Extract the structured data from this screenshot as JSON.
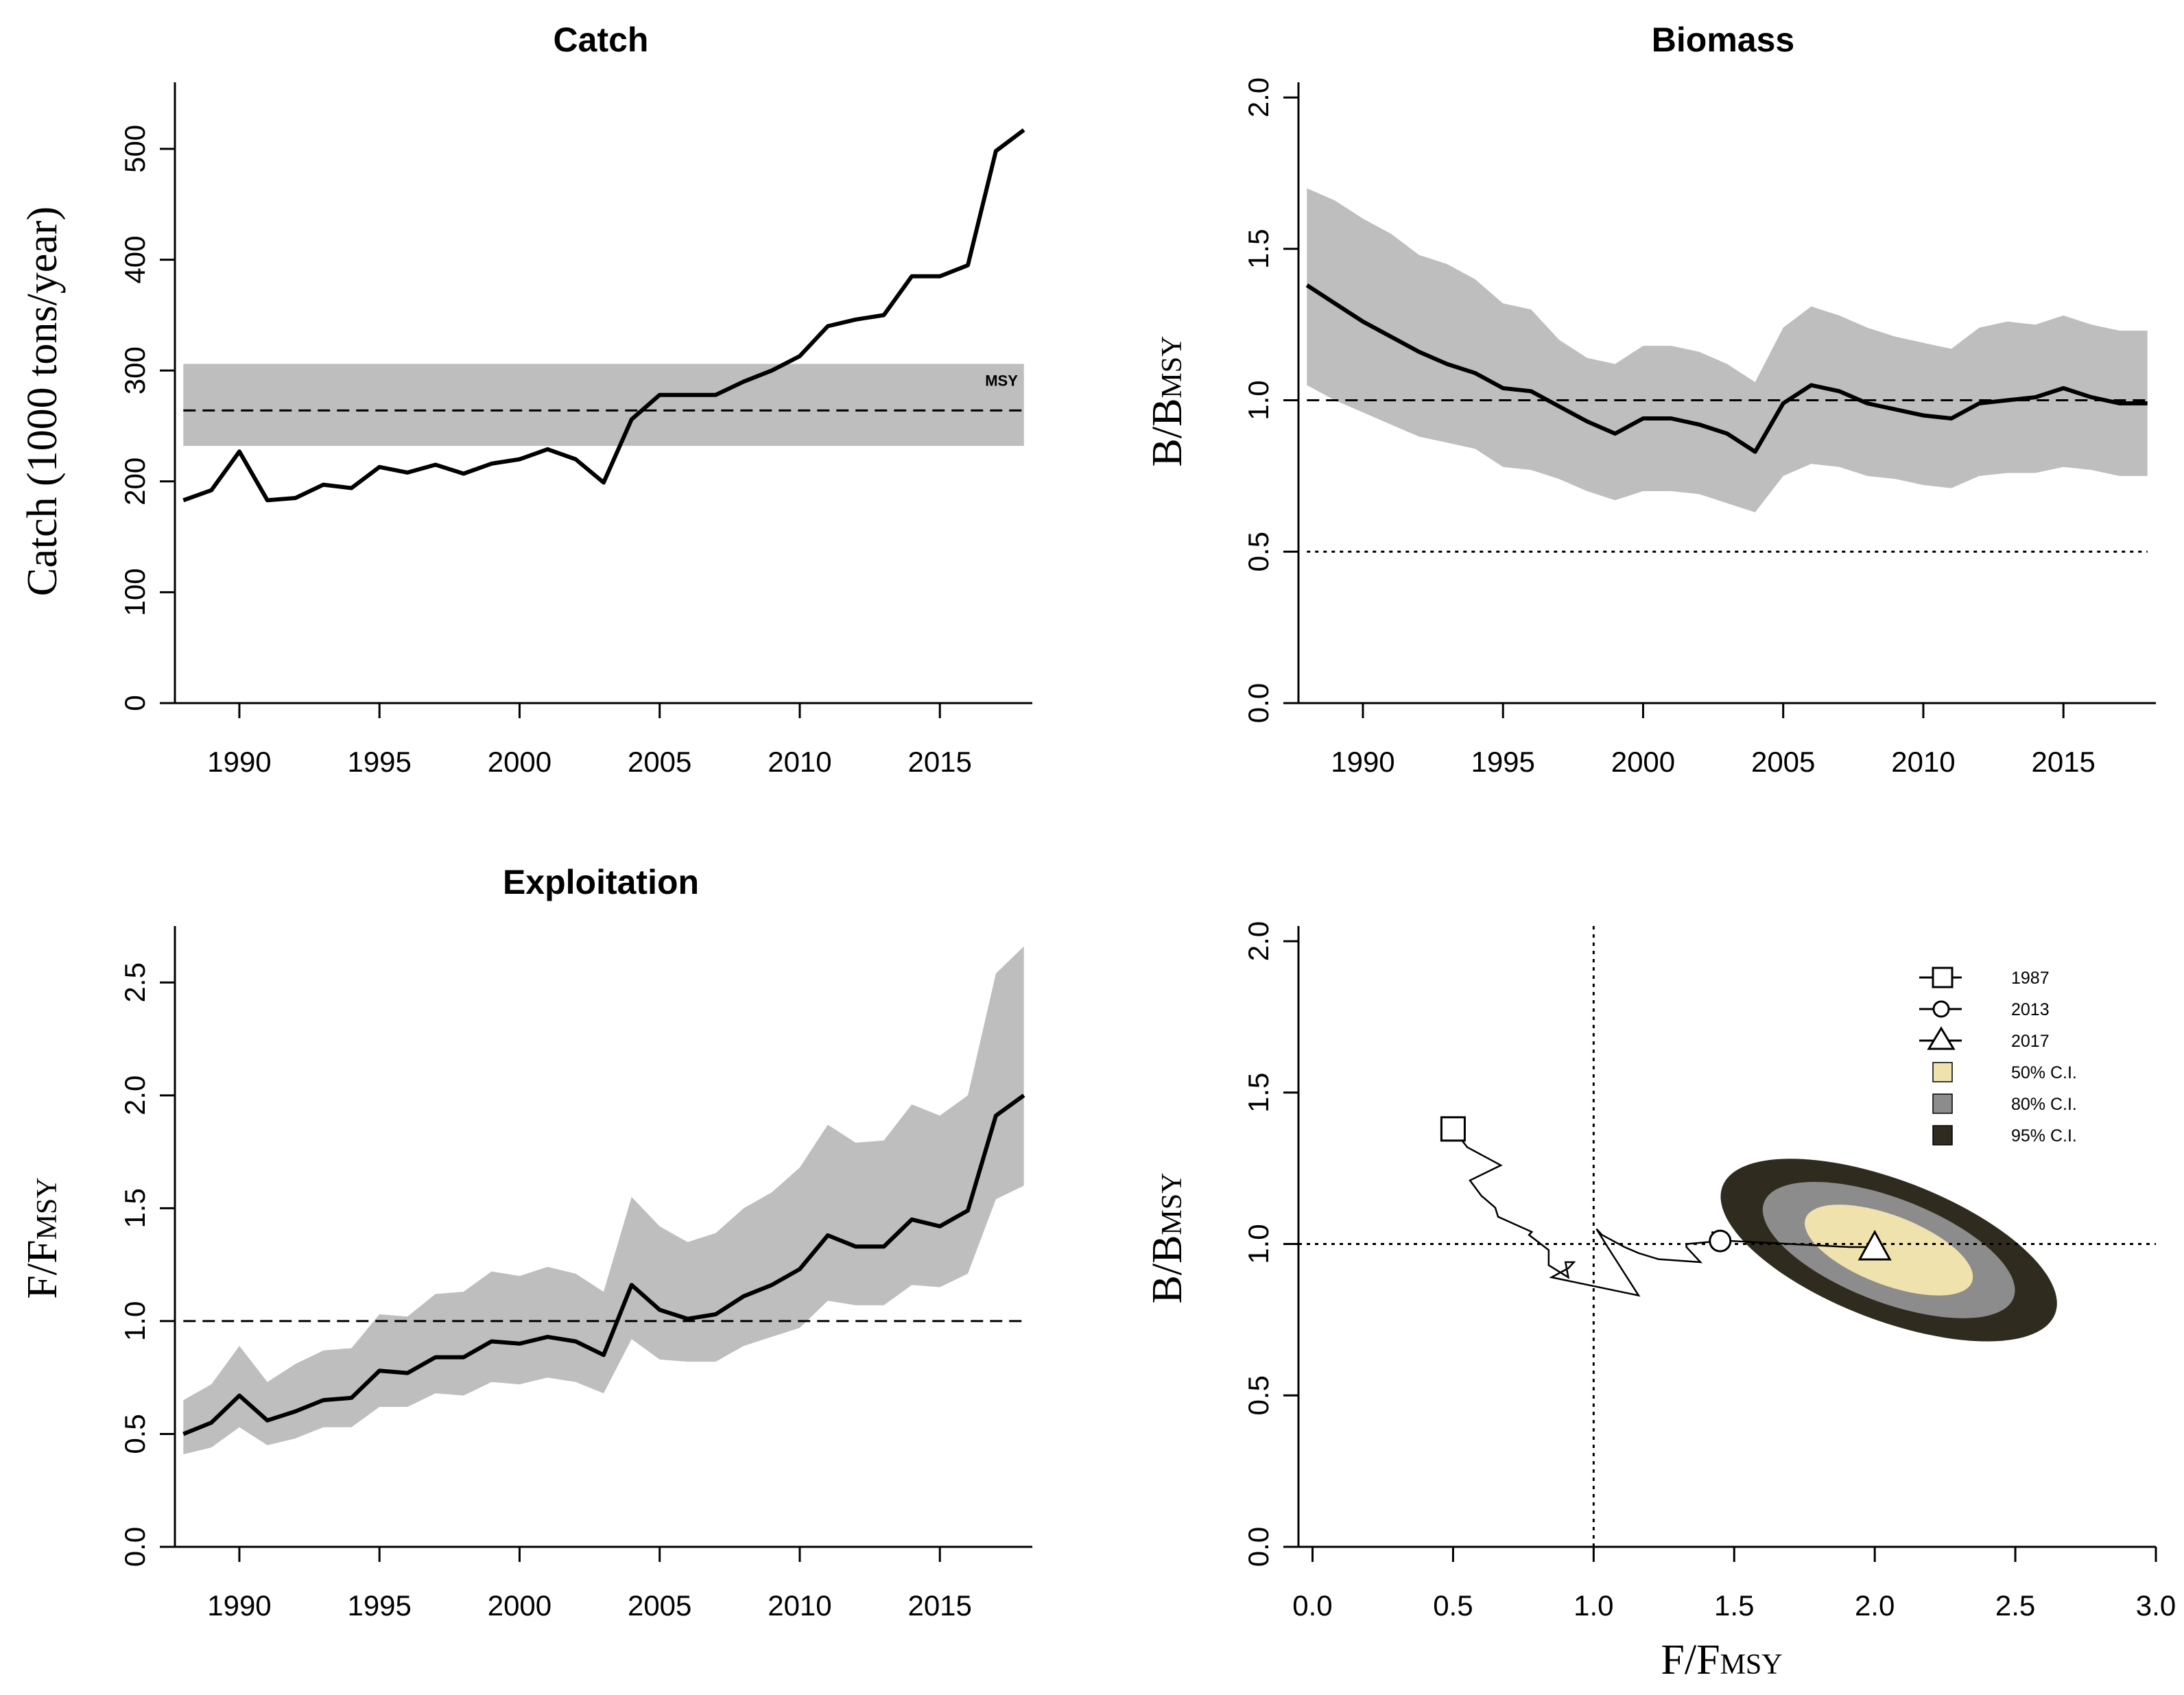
{
  "chart_data": [
    {
      "id": "catch",
      "type": "line",
      "title": "Catch",
      "ylabel": "Catch (1000 tons/year)",
      "xlabel": "",
      "xlim": [
        1987.7,
        2018.3
      ],
      "ylim": [
        0,
        560
      ],
      "xticks": [
        1990,
        1995,
        2000,
        2005,
        2010,
        2015
      ],
      "yticks": [
        0,
        100,
        200,
        300,
        400,
        500
      ],
      "grid": false,
      "x": [
        1988,
        1989,
        1990,
        1991,
        1992,
        1993,
        1994,
        1995,
        1996,
        1997,
        1998,
        1999,
        2000,
        2001,
        2002,
        2003,
        2004,
        2005,
        2006,
        2007,
        2008,
        2009,
        2010,
        2011,
        2012,
        2013,
        2014,
        2015,
        2016,
        2017,
        2018
      ],
      "series": [
        {
          "values": [
            183,
            192,
            227,
            183,
            185,
            197,
            194,
            213,
            208,
            215,
            207,
            216,
            220,
            229,
            220,
            199,
            256,
            278,
            278,
            278,
            290,
            300,
            313,
            340,
            346,
            350,
            385,
            385,
            395,
            498,
            517
          ]
        }
      ],
      "reference": {
        "label": "MSY",
        "value": 264,
        "band": [
          232,
          306
        ],
        "style": "dashed"
      },
      "colors": {
        "line": "#000000",
        "band": "#bebebe"
      }
    },
    {
      "id": "biomass",
      "type": "line",
      "title": "Biomass",
      "ylabel": {
        "main": "B/B",
        "sub": "MSY"
      },
      "xlabel": "",
      "xlim": [
        1987.7,
        2018.3
      ],
      "ylim": [
        0,
        2.05
      ],
      "xticks": [
        1990,
        1995,
        2000,
        2005,
        2010,
        2015
      ],
      "yticks": [
        "0.0",
        "0.5",
        "1.0",
        "1.5",
        "2.0"
      ],
      "grid": false,
      "x": [
        1988,
        1989,
        1990,
        1991,
        1992,
        1993,
        1994,
        1995,
        1996,
        1997,
        1998,
        1999,
        2000,
        2001,
        2002,
        2003,
        2004,
        2005,
        2006,
        2007,
        2008,
        2009,
        2010,
        2011,
        2012,
        2013,
        2014,
        2015,
        2016,
        2017,
        2018
      ],
      "series": [
        {
          "values": [
            1.38,
            1.32,
            1.26,
            1.21,
            1.16,
            1.12,
            1.09,
            1.04,
            1.03,
            0.98,
            0.93,
            0.89,
            0.94,
            0.94,
            0.92,
            0.89,
            0.83,
            0.99,
            1.05,
            1.03,
            0.99,
            0.97,
            0.95,
            0.94,
            0.99,
            1.0,
            1.01,
            1.04,
            1.01,
            0.99,
            0.99
          ]
        }
      ],
      "ci_upper": [
        1.7,
        1.66,
        1.6,
        1.55,
        1.48,
        1.45,
        1.4,
        1.32,
        1.3,
        1.2,
        1.14,
        1.12,
        1.18,
        1.18,
        1.16,
        1.12,
        1.06,
        1.24,
        1.31,
        1.28,
        1.24,
        1.21,
        1.19,
        1.17,
        1.24,
        1.26,
        1.25,
        1.28,
        1.25,
        1.23,
        1.23
      ],
      "ci_lower": [
        1.05,
        1.0,
        0.96,
        0.92,
        0.88,
        0.86,
        0.84,
        0.78,
        0.77,
        0.74,
        0.7,
        0.67,
        0.7,
        0.7,
        0.69,
        0.66,
        0.63,
        0.75,
        0.79,
        0.78,
        0.75,
        0.74,
        0.72,
        0.71,
        0.75,
        0.76,
        0.76,
        0.78,
        0.77,
        0.75,
        0.75
      ],
      "reference_lines": [
        {
          "value": 1.0,
          "style": "dashed"
        },
        {
          "value": 0.5,
          "style": "dotted"
        }
      ],
      "colors": {
        "line": "#000000",
        "band": "#bebebe"
      }
    },
    {
      "id": "exploitation",
      "type": "line",
      "title": "Exploitation",
      "ylabel": {
        "main": "F/F",
        "sub": "MSY"
      },
      "xlabel": "",
      "xlim": [
        1987.7,
        2018.3
      ],
      "ylim": [
        0,
        2.75
      ],
      "xticks": [
        1990,
        1995,
        2000,
        2005,
        2010,
        2015
      ],
      "yticks": [
        "0.0",
        "0.5",
        "1.0",
        "1.5",
        "2.0",
        "2.5"
      ],
      "grid": false,
      "x": [
        1988,
        1989,
        1990,
        1991,
        1992,
        1993,
        1994,
        1995,
        1996,
        1997,
        1998,
        1999,
        2000,
        2001,
        2002,
        2003,
        2004,
        2005,
        2006,
        2007,
        2008,
        2009,
        2010,
        2011,
        2012,
        2013,
        2014,
        2015,
        2016,
        2017,
        2018
      ],
      "series": [
        {
          "values": [
            0.5,
            0.55,
            0.67,
            0.56,
            0.6,
            0.65,
            0.66,
            0.78,
            0.77,
            0.84,
            0.84,
            0.91,
            0.9,
            0.93,
            0.91,
            0.85,
            1.16,
            1.05,
            1.01,
            1.03,
            1.11,
            1.16,
            1.23,
            1.38,
            1.33,
            1.33,
            1.45,
            1.42,
            1.49,
            1.91,
            2.0
          ]
        }
      ],
      "ci_upper": [
        0.65,
        0.72,
        0.89,
        0.73,
        0.81,
        0.87,
        0.88,
        1.03,
        1.02,
        1.12,
        1.13,
        1.22,
        1.2,
        1.24,
        1.21,
        1.13,
        1.55,
        1.42,
        1.35,
        1.39,
        1.5,
        1.57,
        1.68,
        1.87,
        1.79,
        1.8,
        1.96,
        1.91,
        2.0,
        2.54,
        2.66
      ],
      "ci_lower": [
        0.41,
        0.44,
        0.53,
        0.45,
        0.48,
        0.53,
        0.53,
        0.62,
        0.62,
        0.68,
        0.67,
        0.73,
        0.72,
        0.75,
        0.73,
        0.68,
        0.92,
        0.83,
        0.82,
        0.82,
        0.89,
        0.93,
        0.97,
        1.09,
        1.07,
        1.07,
        1.16,
        1.15,
        1.21,
        1.54,
        1.6
      ],
      "reference_lines": [
        {
          "value": 1.0,
          "style": "dashed"
        }
      ],
      "colors": {
        "line": "#000000",
        "band": "#bebebe"
      }
    },
    {
      "id": "kobe",
      "type": "scatter",
      "title": "",
      "xlabel": {
        "main": "F/F",
        "sub": "MSY"
      },
      "ylabel": {
        "main": "B/B",
        "sub": "MSY"
      },
      "xlim": [
        -0.05,
        3.0
      ],
      "ylim": [
        0,
        2.05
      ],
      "xticks": [
        "0.0",
        "0.5",
        "1.0",
        "1.5",
        "2.0",
        "2.5",
        "3.0"
      ],
      "yticks": [
        "0.0",
        "0.5",
        "1.0",
        "1.5",
        "2.0"
      ],
      "grid": false,
      "trajectory": {
        "f": [
          0.5,
          0.55,
          0.67,
          0.56,
          0.6,
          0.65,
          0.66,
          0.78,
          0.77,
          0.84,
          0.84,
          0.91,
          0.9,
          0.93,
          0.91,
          0.85,
          1.16,
          1.05,
          1.01,
          1.03,
          1.11,
          1.16,
          1.23,
          1.38,
          1.33,
          1.33,
          1.45,
          1.42,
          1.49,
          1.91,
          2.0
        ],
        "b": [
          1.38,
          1.32,
          1.26,
          1.21,
          1.16,
          1.12,
          1.09,
          1.04,
          1.03,
          0.98,
          0.93,
          0.89,
          0.94,
          0.94,
          0.92,
          0.89,
          0.83,
          0.99,
          1.05,
          1.03,
          0.99,
          0.97,
          0.95,
          0.94,
          0.99,
          1.0,
          1.01,
          1.04,
          1.01,
          0.99,
          0.99
        ]
      },
      "markers": [
        {
          "label": "1987",
          "shape": "square",
          "f": 0.5,
          "b": 1.38
        },
        {
          "label": "2013",
          "shape": "circle",
          "f": 1.45,
          "b": 1.01
        },
        {
          "label": "2017",
          "shape": "triangle",
          "f": 2.0,
          "b": 0.99
        }
      ],
      "confidence_regions": [
        {
          "label": "95% C.I.",
          "color": "#2f2b1e",
          "rx": 0.88,
          "ry": 0.105
        },
        {
          "label": "80% C.I.",
          "color": "#8c8c8c",
          "rx": 0.66,
          "ry": 0.078
        },
        {
          "label": "50% C.I.",
          "color": "#efe2ad",
          "rx": 0.44,
          "ry": 0.052
        }
      ],
      "ellipse_center": {
        "f": 2.05,
        "b": 0.98,
        "angle_deg": 21
      },
      "reference_lines": [
        {
          "axis": "x",
          "value": 1.0,
          "style": "dotted"
        },
        {
          "axis": "y",
          "value": 1.0,
          "style": "dotted"
        }
      ],
      "legend": {
        "position": "top-right"
      }
    }
  ]
}
